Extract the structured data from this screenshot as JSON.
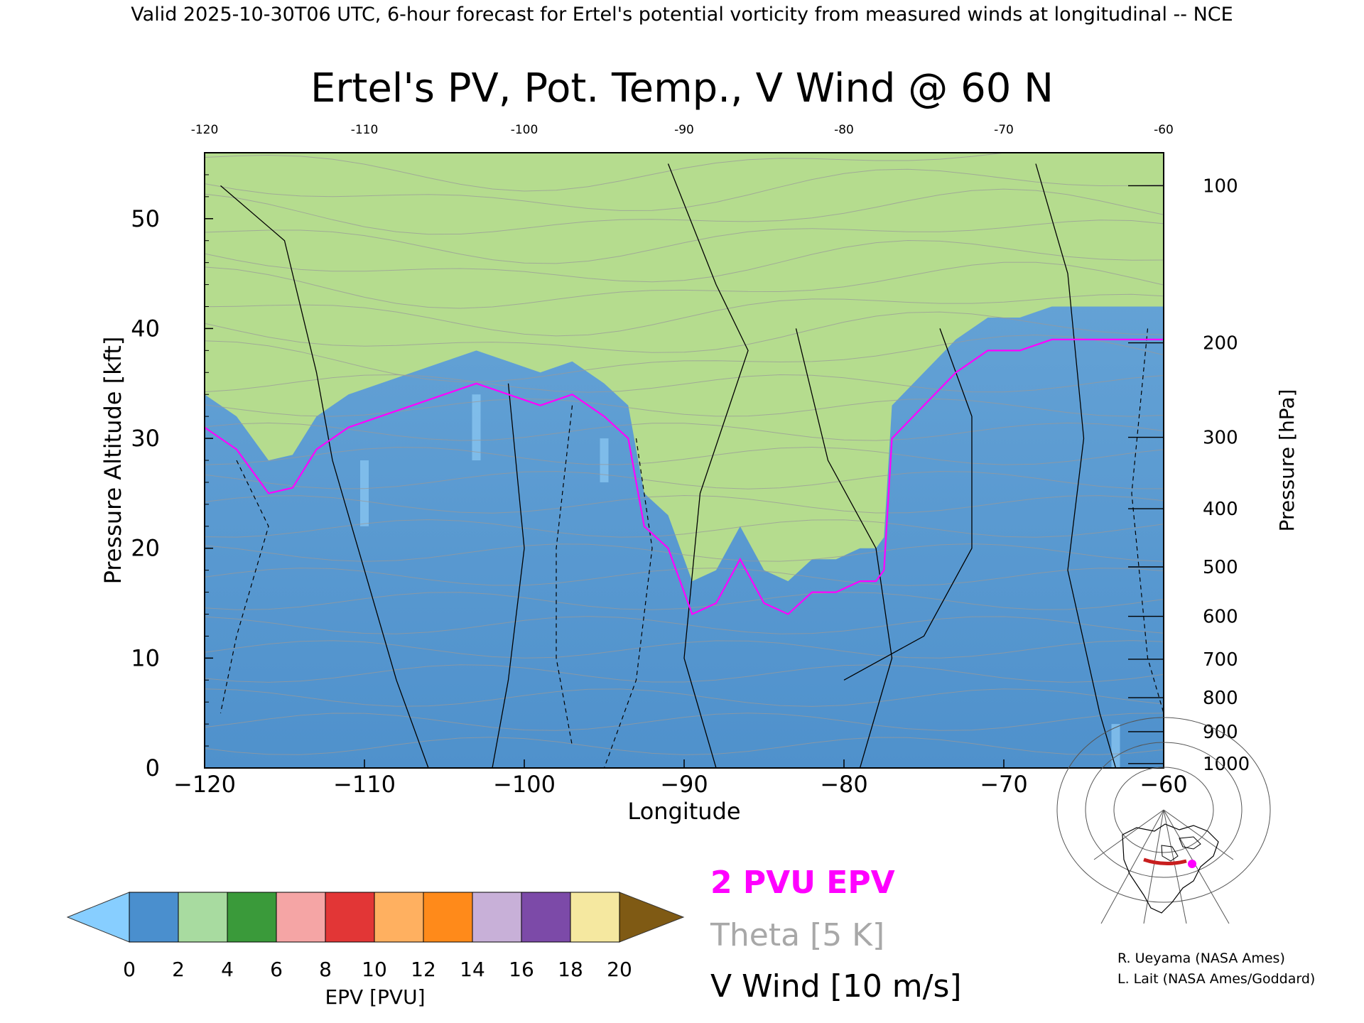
{
  "header": {
    "valid_line": "Valid 2025-10-30T06 UTC, 6-hour forecast for Ertel's potential vorticity from measured winds at longitudinal -- NCE"
  },
  "chart_data": {
    "type": "heatmap",
    "title": "Ertel's PV, Pot. Temp., V Wind @ 60 N",
    "xlabel": "Longitude",
    "ylabel_left": "Pressure Altitude [kft]",
    "ylabel_right": "Pressure [hPa]",
    "xlim": [
      -120,
      -60
    ],
    "ylim": [
      0,
      56
    ],
    "x_ticks": [
      -120,
      -110,
      -100,
      -90,
      -80,
      -70,
      -60
    ],
    "x_tick_labels": [
      "−120",
      "−110",
      "−100",
      "−90",
      "−80",
      "−70",
      "−60"
    ],
    "top_tick_labels": [
      "-120",
      "-110",
      "-100",
      "-90",
      "-80",
      "-70",
      "-60"
    ],
    "y_ticks": [
      0,
      10,
      20,
      30,
      40,
      50
    ],
    "y_tick_labels": [
      "0",
      "10",
      "20",
      "30",
      "40",
      "50"
    ],
    "pressure_ticks": [
      {
        "label": "100",
        "kft": 53.0
      },
      {
        "label": "200",
        "kft": 38.7
      },
      {
        "label": "300",
        "kft": 30.1
      },
      {
        "label": "400",
        "kft": 23.6
      },
      {
        "label": "500",
        "kft": 18.3
      },
      {
        "label": "600",
        "kft": 13.8
      },
      {
        "label": "700",
        "kft": 9.9
      },
      {
        "label": "800",
        "kft": 6.4
      },
      {
        "label": "900",
        "kft": 3.3
      },
      {
        "label": "1000",
        "kft": 0.4
      }
    ],
    "tropopause_2pvu": {
      "lon": [
        -120,
        -118,
        -116,
        -114.5,
        -113,
        -111,
        -109,
        -107,
        -105,
        -103,
        -101,
        -99,
        -97,
        -95,
        -93.5,
        -92.5,
        -91,
        -89.5,
        -88,
        -86.5,
        -85,
        -83.5,
        -82,
        -80.5,
        -79,
        -78,
        -77.5,
        -77,
        -75,
        -73,
        -71,
        -69,
        -67,
        -65,
        -63,
        -61,
        -60
      ],
      "kft": [
        31,
        29,
        25,
        25.5,
        29,
        31,
        32,
        33,
        34,
        35,
        34,
        33,
        34,
        32,
        30,
        22,
        20,
        14,
        15,
        19,
        15,
        14,
        16,
        16,
        17,
        17,
        18,
        30,
        33,
        36,
        38,
        38,
        39,
        39,
        39,
        39,
        39
      ]
    },
    "epv_bands": [
      {
        "from": 0,
        "to": 2,
        "color": "#6fa6d6"
      },
      {
        "from": 2,
        "to": 4,
        "color": "#b5dc8e"
      },
      {
        "from": 4,
        "to": 6,
        "color": "#3fa93f"
      },
      {
        "from": 6,
        "to": 8,
        "color": "#f08f8f"
      },
      {
        "from": 8,
        "to": 10,
        "color": "#e33a3a"
      },
      {
        "from": 10,
        "to": 12,
        "color": "#ffa54a"
      },
      {
        "from": 12,
        "to": 14,
        "color": "#ff8c1a"
      },
      {
        "from": 14,
        "to": 16,
        "color": "#b8a3d4"
      },
      {
        "from": 16,
        "to": 18,
        "color": "#7a4fb5"
      },
      {
        "from": 18,
        "to": 20,
        "color": "#f3e28a"
      },
      {
        "from": 20,
        "to": 22,
        "color": "#8a5a1a"
      }
    ],
    "colorbar": {
      "label": "EPV [PVU]",
      "ticks": [
        "0",
        "2",
        "4",
        "6",
        "8",
        "10",
        "12",
        "14",
        "16",
        "18",
        "20"
      ],
      "under_color": "#87ceff",
      "over_color": "#7f5a14",
      "colors": [
        "#4a8fce",
        "#a8dba0",
        "#3a9a3a",
        "#f5a5a5",
        "#e23636",
        "#ffb060",
        "#ff8a1a",
        "#c8b0d8",
        "#7c4aa8",
        "#f5e8a0"
      ]
    },
    "legend": [
      {
        "label": "2 PVU EPV",
        "color": "#ff00ff"
      },
      {
        "label": "Theta [5 K]",
        "color": "#a8a8a8"
      },
      {
        "label": "V Wind [10 m/s]",
        "color": "#000000"
      }
    ]
  },
  "credits": {
    "line1": "R. Ueyama (NASA Ames)",
    "line2": "L. Lait (NASA Ames/Goddard)"
  },
  "inset_map": {
    "track_color": "#c81e1e",
    "marker_color": "#ff00ff"
  }
}
